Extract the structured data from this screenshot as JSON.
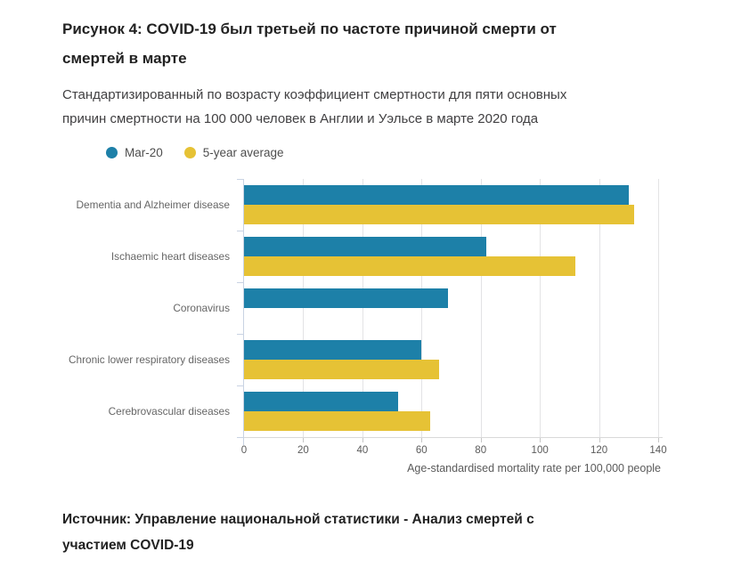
{
  "page": {
    "title": "Рисунок 4: COVID-19 был третьей по частоте причиной смерти от смертей в марте",
    "subtitle": "Стандартизированный по возрасту коэффициент смертности для пяти основных причин смертности на 100 000 человек в Англии и Уэльсе в марте 2020 года",
    "source": "Источник: Управление национальной статистики - Анализ смертей с участием COVID-19"
  },
  "legend": [
    {
      "label": "Mar-20",
      "color": "#1d80a8"
    },
    {
      "label": "5-year average",
      "color": "#e6c235"
    }
  ],
  "chart_data": {
    "type": "bar",
    "orientation": "horizontal",
    "title": "Рисунок 4: COVID-19 был третьей по частоте причиной смерти от смертей в марте",
    "categories": [
      "Dementia and Alzheimer disease",
      "Ischaemic heart diseases",
      "Coronavirus",
      "Chronic lower respiratory diseases",
      "Cerebrovascular diseases"
    ],
    "series": [
      {
        "name": "Mar-20",
        "color": "#1d80a8",
        "values": [
          130,
          82,
          69,
          60,
          52
        ]
      },
      {
        "name": "5-year average",
        "color": "#e6c235",
        "values": [
          132,
          112,
          null,
          66,
          63
        ]
      }
    ],
    "xlabel": "Age-standardised mortality rate per 100,000 people",
    "ylabel": "",
    "xlim": [
      0,
      140
    ],
    "xticks": [
      0,
      20,
      40,
      60,
      80,
      100,
      120,
      140
    ],
    "grid": true,
    "legend_position": "top"
  }
}
